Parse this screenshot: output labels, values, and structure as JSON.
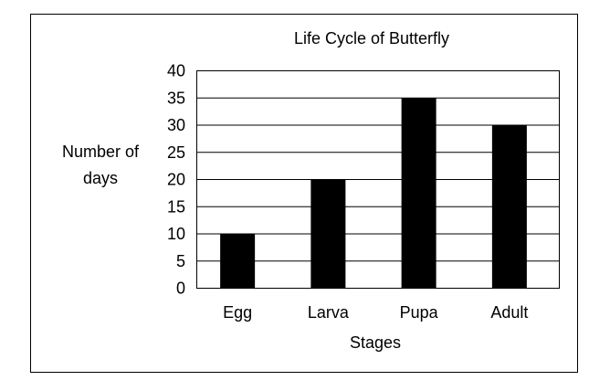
{
  "chart_data": {
    "type": "bar",
    "title": "Life Cycle of Butterfly",
    "xlabel": "Stages",
    "ylabel_lines": [
      "Number of",
      "days"
    ],
    "categories": [
      "Egg",
      "Larva",
      "Pupa",
      "Adult"
    ],
    "values": [
      10,
      20,
      35,
      30
    ],
    "ylim": [
      0,
      40
    ],
    "yticks": [
      0,
      5,
      10,
      15,
      20,
      25,
      30,
      35,
      40
    ],
    "grid": true,
    "legend": "none",
    "bar_color": "#000000"
  }
}
